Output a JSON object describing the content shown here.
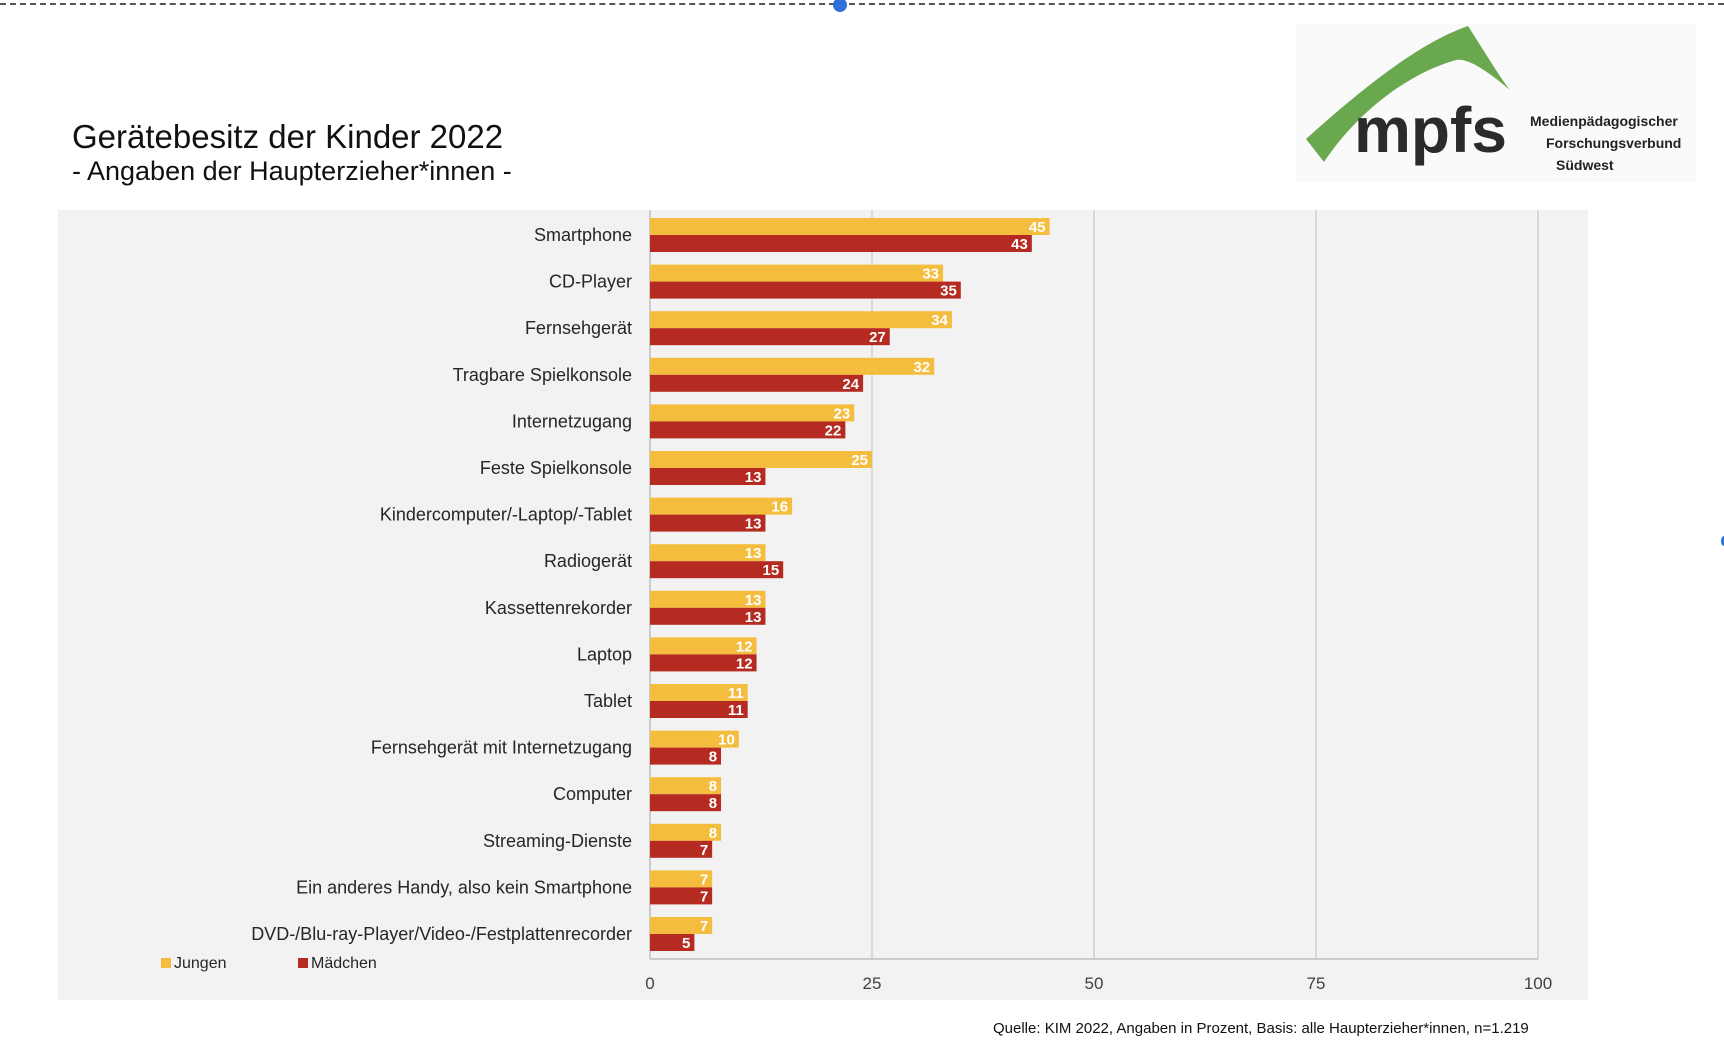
{
  "title": "Gerätebesitz der Kinder 2022",
  "subtitle": "- Angaben der Haupterzieher*innen -",
  "logo": {
    "wordmark": "mpfs",
    "lines": [
      "Medienpädagogischer",
      "Forschungsverbund",
      "Südwest"
    ],
    "green": "#6aa84f",
    "dark": "#2b2b2b"
  },
  "source": "Quelle: KIM 2022, Angaben in Prozent, Basis: alle Haupterzieher*innen, n=1.219",
  "chart_data": {
    "type": "bar",
    "orientation": "horizontal",
    "title": "",
    "xlabel": "",
    "ylabel": "",
    "xlim": [
      0,
      100
    ],
    "xticks": [
      0,
      25,
      50,
      75,
      100
    ],
    "grid": true,
    "legend_position": "bottom-left",
    "categories": [
      "Smartphone",
      "CD-Player",
      "Fernsehgerät",
      "Tragbare Spielkonsole",
      "Internetzugang",
      "Feste Spielkonsole",
      "Kindercomputer/-Laptop/-Tablet",
      "Radiogerät",
      "Kassettenrekorder",
      "Laptop",
      "Tablet",
      "Fernsehgerät mit Internetzugang",
      "Computer",
      "Streaming-Dienste",
      "Ein anderes Handy, also kein Smartphone",
      "DVD-/Blu-ray-Player/Video-/Festplattenrecorder"
    ],
    "series": [
      {
        "name": "Jungen",
        "color": "#f5bd3d",
        "values": [
          45,
          33,
          34,
          32,
          23,
          25,
          16,
          13,
          13,
          12,
          11,
          10,
          8,
          8,
          7,
          7
        ]
      },
      {
        "name": "Mädchen",
        "color": "#b52b22",
        "values": [
          43,
          35,
          27,
          24,
          22,
          13,
          13,
          15,
          13,
          12,
          11,
          8,
          8,
          7,
          7,
          5
        ]
      }
    ]
  }
}
